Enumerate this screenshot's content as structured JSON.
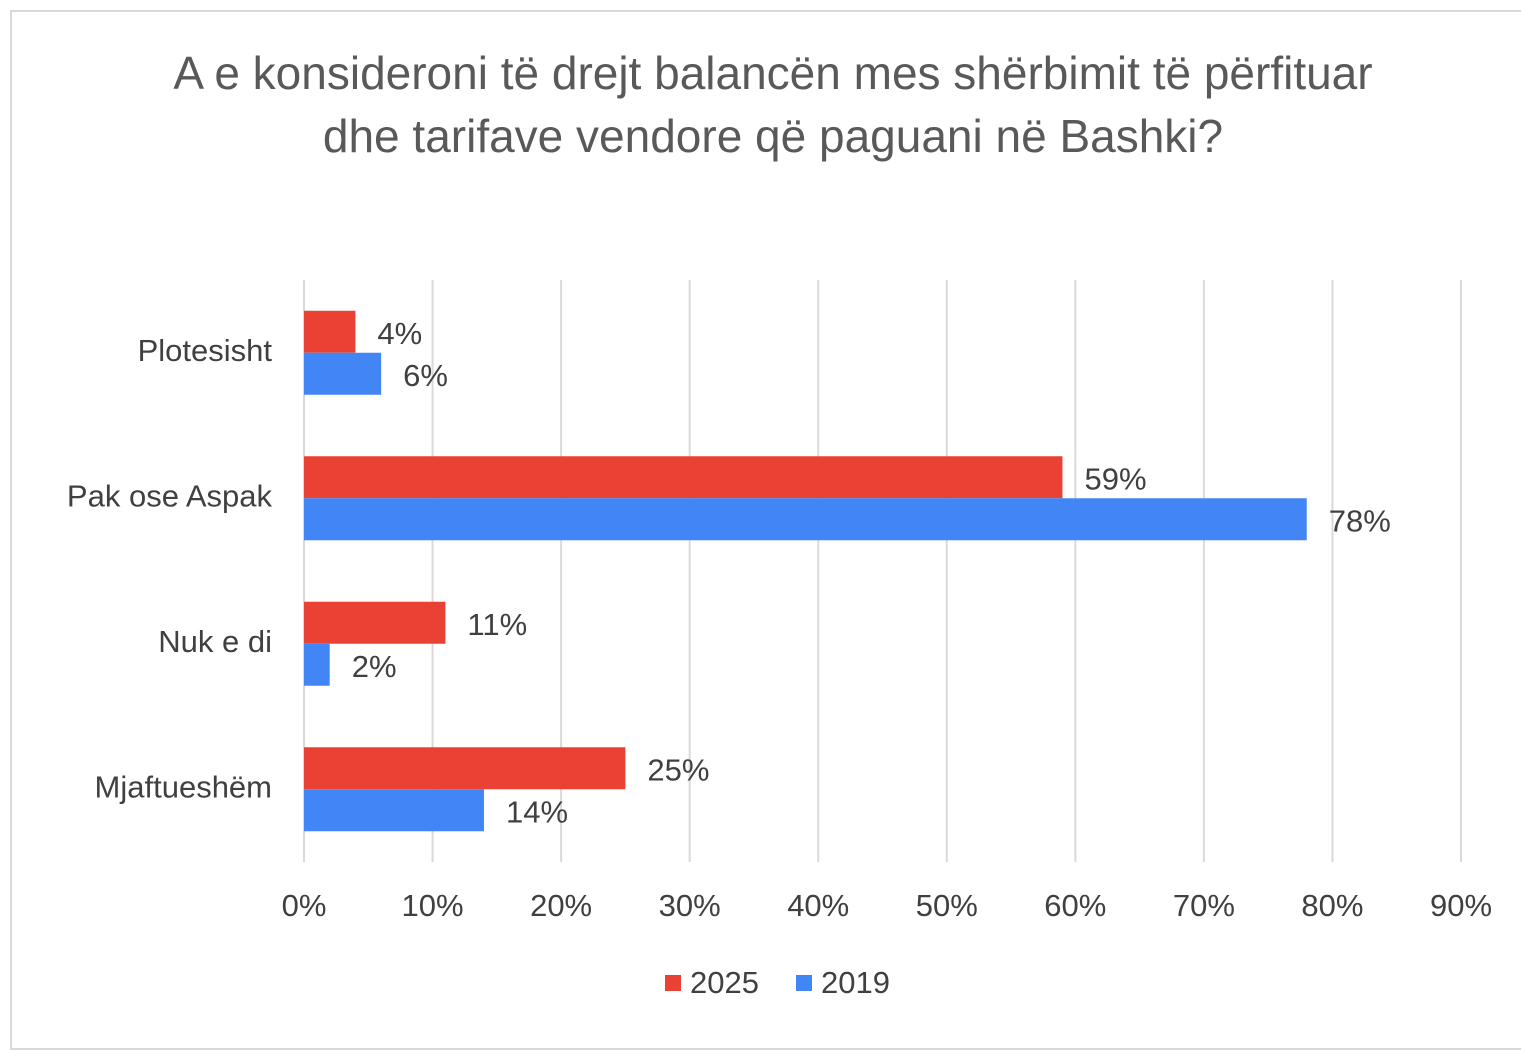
{
  "chart_data": {
    "type": "bar",
    "orientation": "horizontal",
    "title": "A e konsideroni të drejt balancën mes shërbimit të përfituar dhe tarifave vendore që paguani në Bashki?",
    "categories": [
      "Plotesisht",
      "Pak ose Aspak",
      "Nuk e di",
      "Mjaftueshëm"
    ],
    "series": [
      {
        "name": "2025",
        "color": "#e94235",
        "values": [
          4,
          59,
          11,
          25
        ],
        "value_labels": [
          "4%",
          "59%",
          "11%",
          "25%"
        ]
      },
      {
        "name": "2019",
        "color": "#4285f4",
        "values": [
          6,
          78,
          2,
          14
        ],
        "value_labels": [
          "6%",
          "78%",
          "2%",
          "14%"
        ]
      }
    ],
    "xlim": [
      0,
      90
    ],
    "xticks": [
      {
        "value": 0,
        "label": "0%"
      },
      {
        "value": 10,
        "label": "10%"
      },
      {
        "value": 20,
        "label": "20%"
      },
      {
        "value": 30,
        "label": "30%"
      },
      {
        "value": 40,
        "label": "40%"
      },
      {
        "value": 50,
        "label": "50%"
      },
      {
        "value": 60,
        "label": "60%"
      },
      {
        "value": 70,
        "label": "70%"
      },
      {
        "value": 80,
        "label": "80%"
      },
      {
        "value": 90,
        "label": "90%"
      }
    ],
    "grid": true,
    "legend": "bottom"
  }
}
